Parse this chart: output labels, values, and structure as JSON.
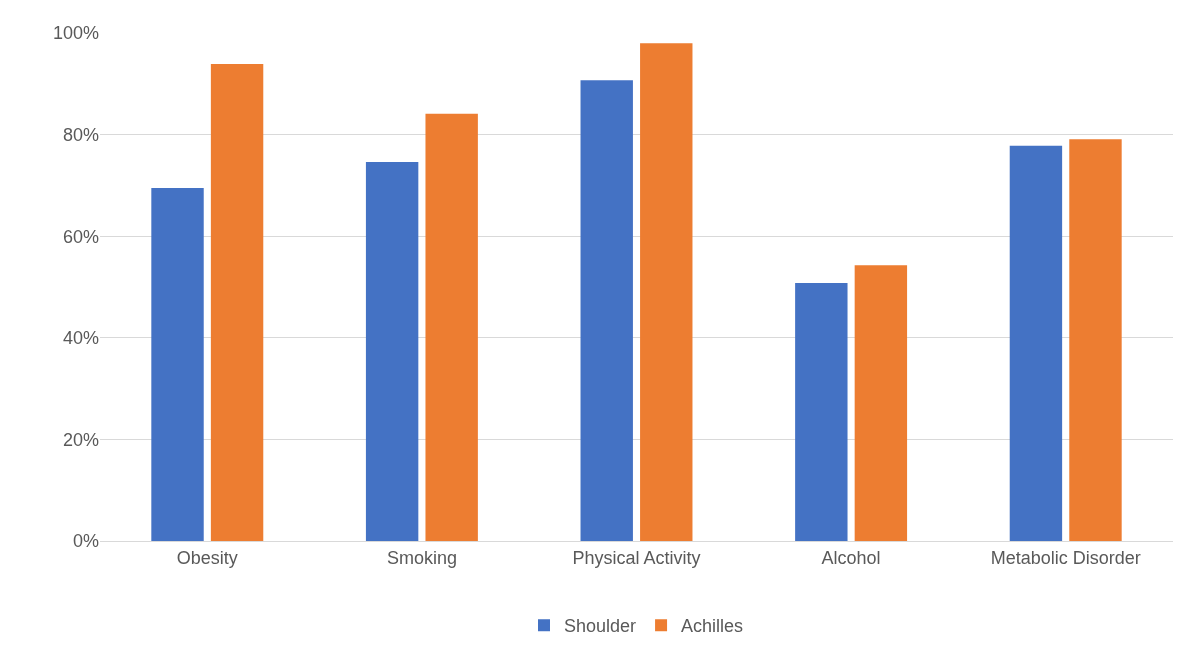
{
  "chart_data": {
    "type": "bar",
    "categories": [
      "Obesity",
      "Smoking",
      "Physical Activity",
      "Alcohol",
      "Metabolic Disorder"
    ],
    "series": [
      {
        "name": "Shoulder",
        "color": "#4472c4",
        "values": [
          69.5,
          74.6,
          90.7,
          50.8,
          77.8
        ]
      },
      {
        "name": "Achilles",
        "color": "#ed7d31",
        "values": [
          93.9,
          84.1,
          98.0,
          54.3,
          79.1
        ]
      }
    ],
    "ylim": [
      0,
      100
    ],
    "yticks": [
      {
        "value": 0,
        "label": "0%"
      },
      {
        "value": 20,
        "label": "20%"
      },
      {
        "value": 40,
        "label": "40%"
      },
      {
        "value": 60,
        "label": "60%"
      },
      {
        "value": 80,
        "label": "80%"
      },
      {
        "value": 100,
        "label": "100%"
      }
    ],
    "grid": "y",
    "legend": "bottom"
  }
}
